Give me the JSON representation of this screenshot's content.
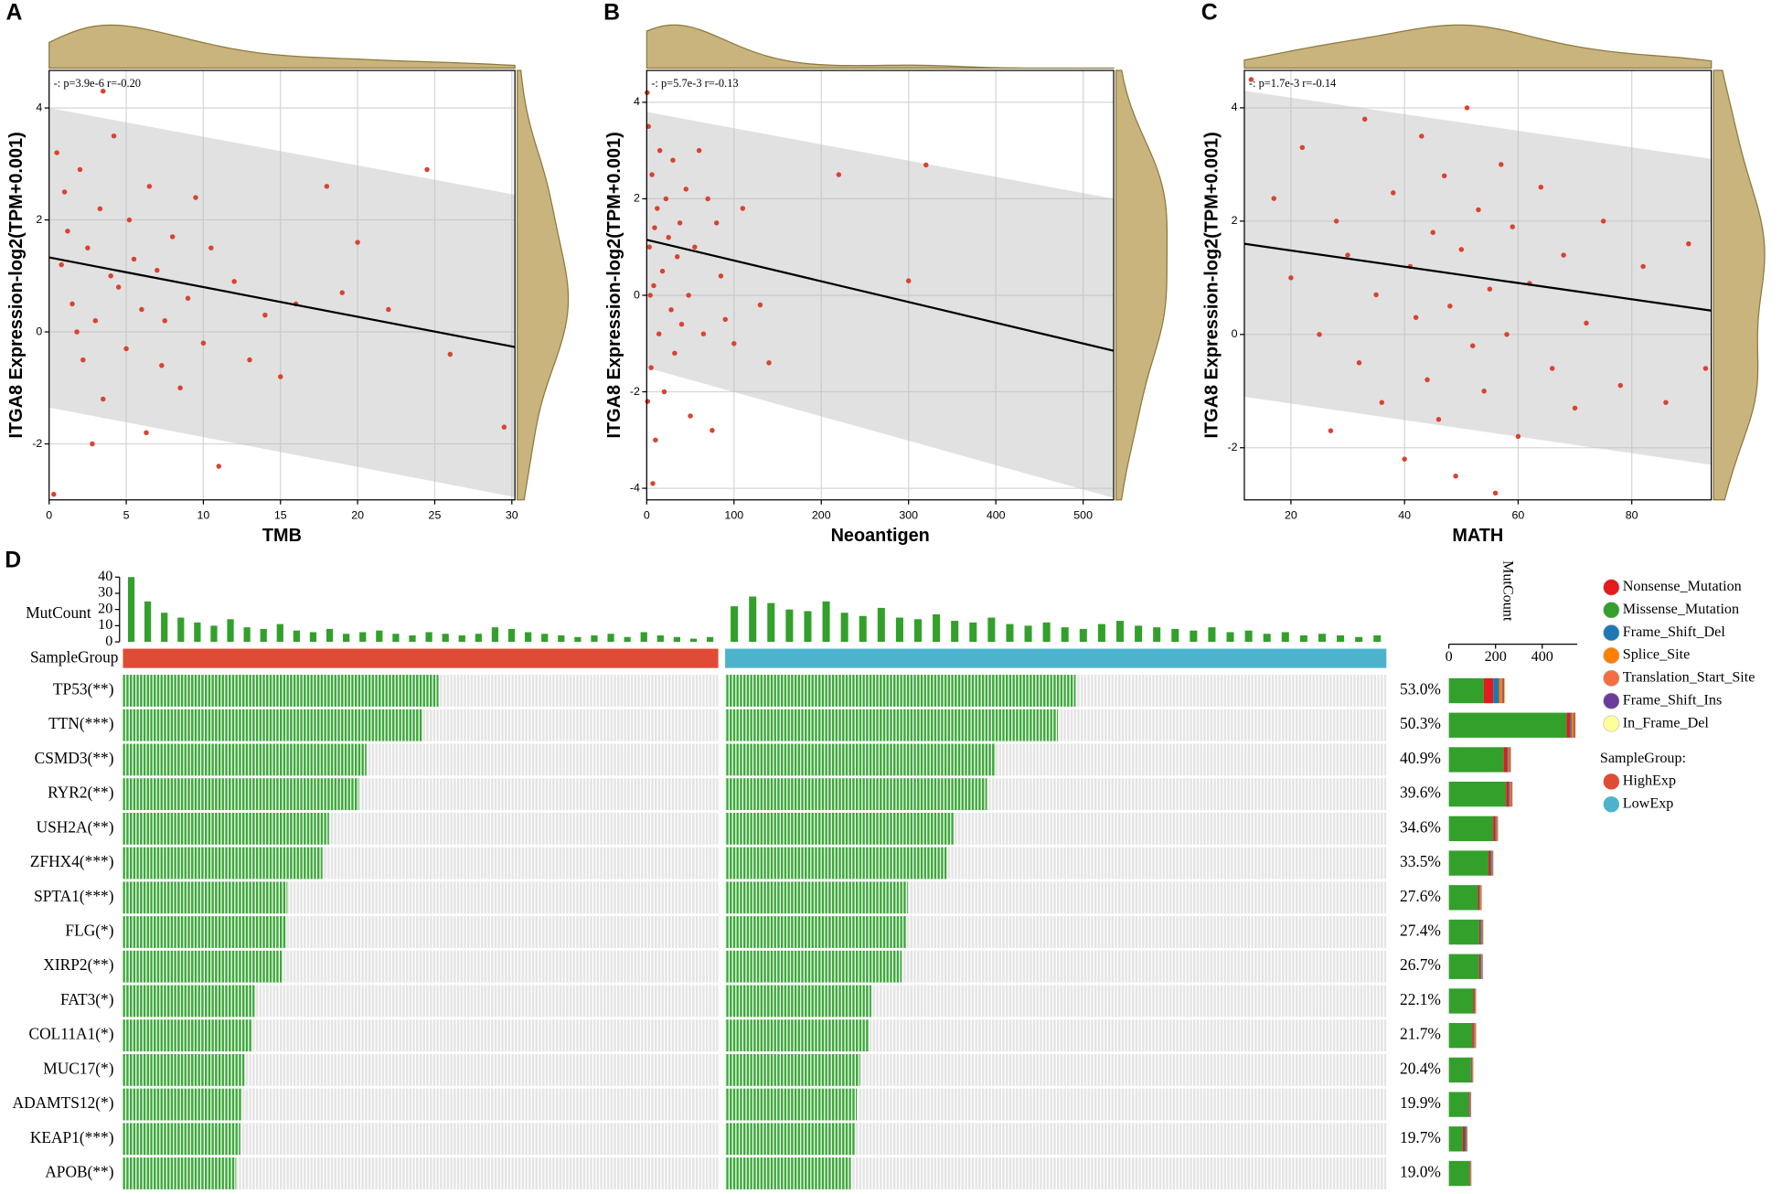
{
  "chart_data": [
    {
      "type": "scatter",
      "panel": "A",
      "xlabel": "TMB",
      "ylabel": "ITGA8 Expression-log2(TPM+0.001)",
      "annotation": "-: p=3.9e-6 r=-0.20",
      "xlim": [
        0,
        30.2
      ],
      "ylim": [
        -3.0,
        4.67
      ],
      "xticks": [
        0,
        5,
        10,
        15,
        20,
        25,
        30
      ],
      "yticks": [
        -2,
        0,
        2,
        4
      ],
      "grid": true,
      "color": "#d9432f",
      "x": [
        0.5,
        1,
        1.2,
        1.5,
        2,
        2.2,
        2.5,
        3,
        3.3,
        3.5,
        4,
        4.2,
        4.5,
        5,
        5.2,
        5.5,
        6,
        6.3,
        6.5,
        7,
        7.3,
        7.5,
        8,
        8.5,
        9,
        9.5,
        10,
        10.5,
        11,
        12,
        13,
        14,
        15,
        16,
        18,
        19,
        20,
        22,
        24.5,
        26,
        29.5,
        0.3,
        3.5,
        1.8,
        0.8,
        2.8
      ],
      "y": [
        3.2,
        2.5,
        1.8,
        0.5,
        2.9,
        -0.5,
        1.5,
        0.2,
        2.2,
        -1.2,
        1.0,
        3.5,
        0.8,
        -0.3,
        2.0,
        1.3,
        0.4,
        -1.8,
        2.6,
        1.1,
        -0.6,
        0.2,
        1.7,
        -1.0,
        0.6,
        2.4,
        -0.2,
        1.5,
        -2.4,
        0.9,
        -0.5,
        0.3,
        -0.8,
        0.5,
        2.6,
        0.7,
        1.6,
        0.4,
        2.9,
        -0.4,
        -1.7,
        -2.9,
        4.3,
        0.0,
        1.2,
        -2.0
      ],
      "fit": {
        "x": [
          0,
          30.2
        ],
        "y": [
          1.33,
          -0.27
        ]
      },
      "ci_upper": [
        4.0,
        2.45
      ],
      "ci_lower": [
        -1.35,
        -2.95
      ]
    },
    {
      "type": "scatter",
      "panel": "B",
      "xlabel": "Neoantigen",
      "ylabel": "ITGA8 Expression-log2(TPM+0.001)",
      "annotation": "-: p=5.7e-3 r=-0.13",
      "xlim": [
        0,
        535
      ],
      "ylim": [
        -4.24,
        4.66
      ],
      "xticks": [
        0,
        100,
        200,
        300,
        400,
        500
      ],
      "yticks": [
        -4,
        -2,
        0,
        2,
        4
      ],
      "grid": true,
      "color": "#d9432f",
      "x": [
        2,
        3,
        5,
        6,
        8,
        10,
        12,
        14,
        15,
        18,
        20,
        22,
        25,
        28,
        30,
        32,
        35,
        38,
        40,
        45,
        48,
        50,
        55,
        60,
        65,
        70,
        75,
        80,
        85,
        90,
        100,
        110,
        130,
        140,
        220,
        320,
        300,
        0.5,
        1,
        4,
        7,
        9
      ],
      "y": [
        3.5,
        1.0,
        -1.5,
        2.5,
        0.2,
        -3,
        1.8,
        -0.8,
        3.0,
        0.5,
        -2,
        2.0,
        1.2,
        -0.3,
        2.8,
        -1.2,
        0.8,
        1.5,
        -0.6,
        2.2,
        0.0,
        -2.5,
        1.0,
        3.0,
        -0.8,
        2.0,
        -2.8,
        1.5,
        0.4,
        -0.5,
        -1.0,
        1.8,
        -0.2,
        -1.4,
        2.5,
        2.7,
        0.3,
        4.2,
        -2.2,
        0.0,
        -3.9,
        1.4
      ],
      "fit": {
        "x": [
          0,
          535
        ],
        "y": [
          1.15,
          -1.15
        ]
      },
      "ci_upper": [
        3.8,
        2.0
      ],
      "ci_lower": [
        -1.5,
        -4.2
      ]
    },
    {
      "type": "scatter",
      "panel": "C",
      "xlabel": "MATH",
      "ylabel": "ITGA8 Expression-log2(TPM+0.001)",
      "annotation": "-: p=1.7e-3 r=-0.14",
      "xlim": [
        11.8,
        94
      ],
      "ylim": [
        -2.92,
        4.66
      ],
      "xticks": [
        20,
        40,
        60,
        80
      ],
      "yticks": [
        -2,
        0,
        2,
        4
      ],
      "grid": true,
      "color": "#d9432f",
      "x": [
        17,
        20,
        22,
        25,
        27,
        28,
        30,
        32,
        33,
        35,
        36,
        38,
        40,
        41,
        42,
        43,
        44,
        45,
        46,
        47,
        48,
        49,
        50,
        51,
        52,
        53,
        54,
        55,
        56,
        57,
        58,
        59,
        60,
        62,
        64,
        66,
        68,
        70,
        72,
        75,
        78,
        82,
        86,
        90,
        93,
        13
      ],
      "y": [
        2.4,
        1.0,
        3.3,
        0.0,
        -1.7,
        2.0,
        1.4,
        -0.5,
        3.8,
        0.7,
        -1.2,
        2.5,
        -2.2,
        1.2,
        0.3,
        3.5,
        -0.8,
        1.8,
        -1.5,
        2.8,
        0.5,
        -2.5,
        1.5,
        4.0,
        -0.2,
        2.2,
        -1.0,
        0.8,
        -2.8,
        3.0,
        0.0,
        1.9,
        -1.8,
        0.9,
        2.6,
        -0.6,
        1.4,
        -1.3,
        0.2,
        2.0,
        -0.9,
        1.2,
        -1.2,
        1.6,
        -0.6,
        4.5
      ],
      "fit": {
        "x": [
          11.8,
          94
        ],
        "y": [
          1.6,
          0.42
        ]
      },
      "ci_upper": [
        4.3,
        3.1
      ],
      "ci_lower": [
        -1.1,
        -2.3
      ]
    },
    {
      "type": "oncoplot",
      "panel": "D",
      "mutcount_label": "MutCount",
      "group_label": "SampleGroup",
      "mutcount_ylim": [
        0,
        40
      ],
      "mutcount_yticks": [
        0,
        10,
        20,
        30,
        40
      ],
      "mutcount_color": "#33a02c",
      "groups": [
        {
          "name": "HighExp",
          "color": "#e04b35",
          "mutcount": [
            40,
            25,
            18,
            15,
            12,
            10,
            14,
            9,
            8,
            11,
            7,
            6,
            8,
            5,
            6,
            7,
            5,
            4,
            6,
            5,
            4,
            5,
            9,
            8,
            6,
            5,
            4,
            3,
            4,
            5,
            3,
            6,
            4,
            3,
            2,
            3
          ]
        },
        {
          "name": "LowExp",
          "color": "#4db3cc",
          "mutcount": [
            22,
            28,
            24,
            20,
            19,
            25,
            18,
            16,
            21,
            15,
            14,
            17,
            13,
            12,
            15,
            11,
            10,
            12,
            9,
            8,
            11,
            13,
            10,
            9,
            8,
            7,
            9,
            6,
            7,
            5,
            6,
            4,
            5,
            4,
            3,
            4
          ]
        }
      ],
      "genes": [
        "TP53(**)",
        "TTN(***)",
        "CSMD3(**)",
        "RYR2(**)",
        "USH2A(**)",
        "ZFHX4(***)",
        "SPTA1(***)",
        "FLG(*)",
        "XIRP2(**)",
        "FAT3(*)",
        "COL11A1(*)",
        "MUC17(*)",
        "ADAMTS12(*)",
        "KEAP1(***)",
        "APOB(**)"
      ],
      "percent": [
        53.0,
        50.3,
        40.9,
        39.6,
        34.6,
        33.5,
        27.6,
        27.4,
        26.7,
        22.1,
        21.7,
        20.4,
        19.9,
        19.7,
        19.0
      ],
      "percent_labels": [
        "53.0%",
        "50.3%",
        "40.9%",
        "39.6%",
        "34.6%",
        "33.5%",
        "27.6%",
        "27.4%",
        "26.7%",
        "22.1%",
        "21.7%",
        "20.4%",
        "19.9%",
        "19.7%",
        "19.0%"
      ],
      "bar_label": "MutCount",
      "xlim": [
        0,
        550
      ],
      "xticks": [
        0,
        200,
        400
      ],
      "series": [
        {
          "name": "Nonsense_Mutation",
          "color": "#e41a1c",
          "values": [
            40,
            15,
            15,
            12,
            10,
            8,
            6,
            5,
            5,
            4,
            6,
            3,
            3,
            8,
            3
          ]
        },
        {
          "name": "Missense_Mutation",
          "color": "#33a02c",
          "values": [
            150,
            505,
            235,
            245,
            190,
            170,
            125,
            130,
            130,
            105,
            100,
            95,
            85,
            60,
            88
          ]
        },
        {
          "name": "Frame_Shift_Del",
          "color": "#1f78b4",
          "values": [
            25,
            6,
            5,
            5,
            4,
            6,
            3,
            6,
            5,
            2,
            3,
            2,
            3,
            6,
            2
          ]
        },
        {
          "name": "Splice_Site",
          "color": "#ff7f00",
          "values": [
            15,
            10,
            6,
            6,
            4,
            4,
            4,
            4,
            3,
            3,
            5,
            2,
            2,
            3,
            2
          ]
        },
        {
          "name": "Translation_Start_Site",
          "color": "#f46d43",
          "values": [
            3,
            2,
            2,
            2,
            1,
            1,
            1,
            1,
            1,
            1,
            1,
            1,
            1,
            1,
            1
          ]
        },
        {
          "name": "Frame_Shift_Ins",
          "color": "#6a3d9a",
          "values": [
            6,
            4,
            3,
            3,
            2,
            2,
            2,
            2,
            2,
            2,
            2,
            2,
            2,
            2,
            1
          ]
        },
        {
          "name": "In_Frame_Del",
          "color": "#ffff99",
          "values": [
            4,
            2,
            1,
            1,
            1,
            1,
            1,
            1,
            1,
            1,
            1,
            1,
            1,
            1,
            1
          ]
        }
      ],
      "group_legend_title": "SampleGroup:"
    }
  ]
}
